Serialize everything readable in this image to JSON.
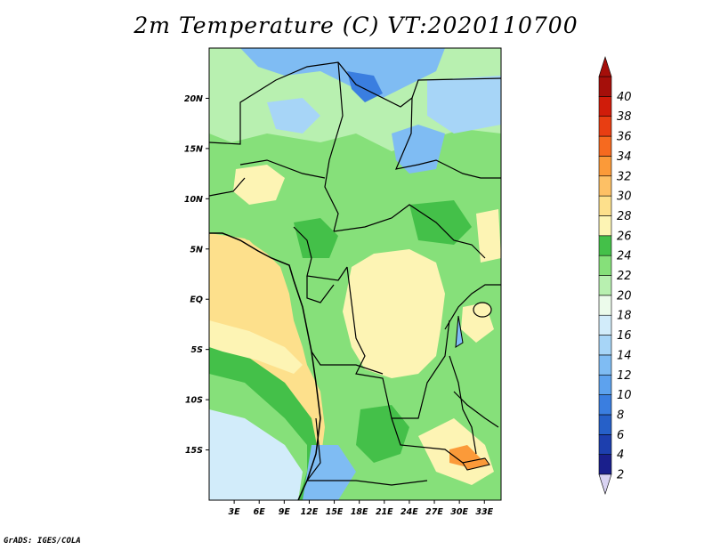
{
  "title": "2m Temperature (C) VT:2020110700",
  "credit": "GrADS: IGES/COLA",
  "map": {
    "lon_range": [
      0,
      35
    ],
    "lat_range": [
      -20,
      25
    ],
    "x_ticks": [
      "3E",
      "6E",
      "9E",
      "12E",
      "15E",
      "18E",
      "21E",
      "24E",
      "27E",
      "30E",
      "33E"
    ],
    "x_tick_values": [
      3,
      6,
      9,
      12,
      15,
      18,
      21,
      24,
      27,
      30,
      33
    ],
    "y_ticks": [
      "20N",
      "15N",
      "10N",
      "5N",
      "EQ",
      "5S",
      "10S",
      "15S"
    ],
    "y_tick_values": [
      20,
      15,
      10,
      5,
      0,
      -5,
      -10,
      -15
    ]
  },
  "colorbar": {
    "levels": [
      "2",
      "4",
      "6",
      "8",
      "10",
      "12",
      "14",
      "16",
      "18",
      "20",
      "22",
      "24",
      "26",
      "28",
      "30",
      "32",
      "34",
      "36",
      "38",
      "40"
    ],
    "colors": [
      "#1a1f8c",
      "#1d3fae",
      "#2660c8",
      "#3a7ee0",
      "#5da2ee",
      "#7fbcf3",
      "#a7d5f7",
      "#d2ecfa",
      "#ecfbeb",
      "#b8f0b0",
      "#86e07a",
      "#44c049",
      "#fdf4b4",
      "#fde08c",
      "#fdc065",
      "#fb9a39",
      "#f66a1f",
      "#e83e12",
      "#d01c0a",
      "#a50f0a"
    ]
  }
}
